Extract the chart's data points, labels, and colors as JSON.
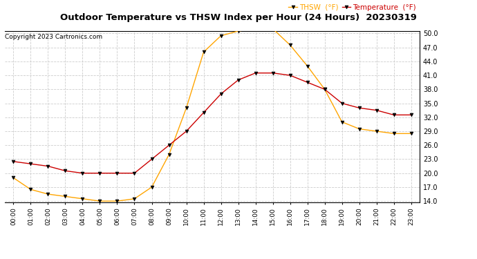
{
  "title": "Outdoor Temperature vs THSW Index per Hour (24 Hours)  20230319",
  "copyright": "Copyright 2023 Cartronics.com",
  "hours": [
    "00:00",
    "01:00",
    "02:00",
    "03:00",
    "04:00",
    "05:00",
    "06:00",
    "07:00",
    "08:00",
    "09:00",
    "10:00",
    "11:00",
    "12:00",
    "13:00",
    "14:00",
    "15:00",
    "16:00",
    "17:00",
    "18:00",
    "19:00",
    "20:00",
    "21:00",
    "22:00",
    "23:00"
  ],
  "temperature": [
    22.5,
    22.0,
    21.5,
    20.5,
    20.0,
    20.0,
    20.0,
    20.0,
    23.0,
    26.0,
    29.0,
    33.0,
    37.0,
    40.0,
    41.5,
    41.5,
    41.0,
    39.5,
    38.0,
    35.0,
    34.0,
    33.5,
    32.5,
    32.5
  ],
  "thsw": [
    19.0,
    16.5,
    15.5,
    15.0,
    14.5,
    14.0,
    14.0,
    14.5,
    17.0,
    24.0,
    34.0,
    46.0,
    49.5,
    50.5,
    51.0,
    51.0,
    47.5,
    43.0,
    38.0,
    31.0,
    29.5,
    29.0,
    28.5,
    28.5
  ],
  "thsw_color": "#FFA500",
  "temp_color": "#CC0000",
  "ylim_min": 14.0,
  "ylim_max": 50.0,
  "ytick_step": 3.0,
  "grid_color": "#CCCCCC",
  "background_color": "#FFFFFF",
  "title_fontsize": 9.5,
  "copyright_fontsize": 6.5,
  "legend_thsw": "THSW  (°F)",
  "legend_temp": "Temperature  (°F)",
  "legend_fontsize": 7.5
}
